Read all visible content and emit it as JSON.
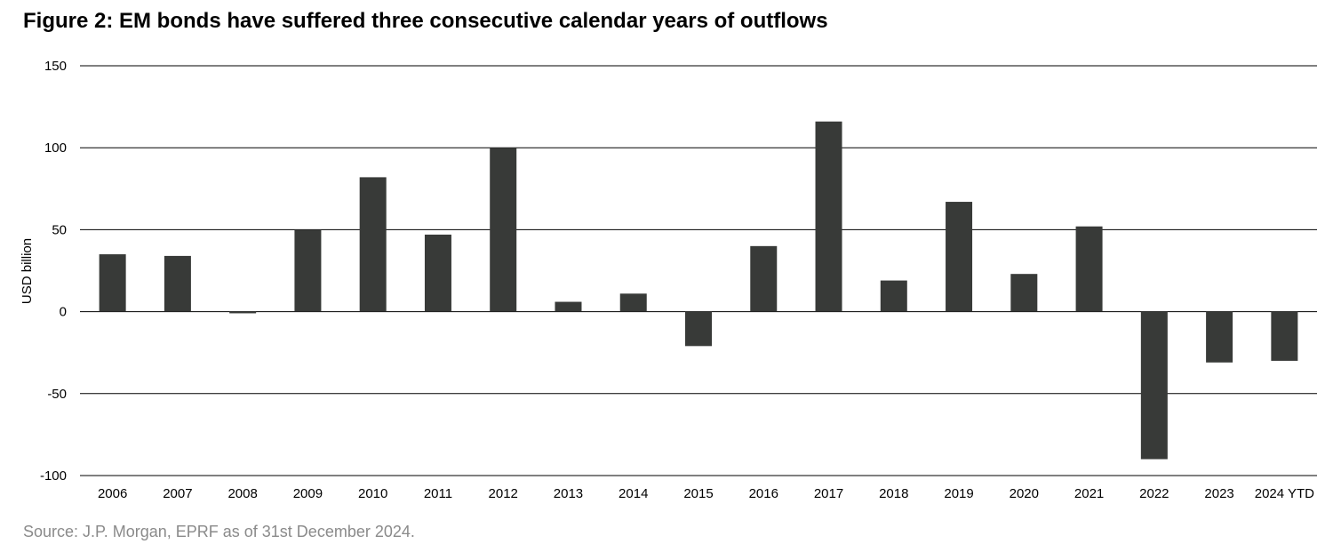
{
  "title": "Figure 2: EM bonds have suffered three consecutive calendar years of outflows",
  "source": "Source: J.P. Morgan, EPRF as of 31st December 2024.",
  "chart_data": {
    "type": "bar",
    "title": "Figure 2: EM bonds have suffered three consecutive calendar years of outflows",
    "xlabel": "",
    "ylabel": "USD billion",
    "ylim": [
      -100,
      150
    ],
    "yticks": [
      150,
      100,
      50,
      0,
      -50,
      -100
    ],
    "grid": true,
    "categories": [
      "2006",
      "2007",
      "2008",
      "2009",
      "2010",
      "2011",
      "2012",
      "2013",
      "2014",
      "2015",
      "2016",
      "2017",
      "2018",
      "2019",
      "2020",
      "2021",
      "2022",
      "2023",
      "2024 YTD"
    ],
    "values": [
      35,
      34,
      -1,
      50,
      82,
      47,
      100,
      6,
      11,
      -21,
      40,
      116,
      19,
      67,
      23,
      52,
      -90,
      -31,
      -30
    ],
    "colors": {
      "bar": "#383a38",
      "grid": "#000000",
      "axis_text": "#000000"
    }
  }
}
